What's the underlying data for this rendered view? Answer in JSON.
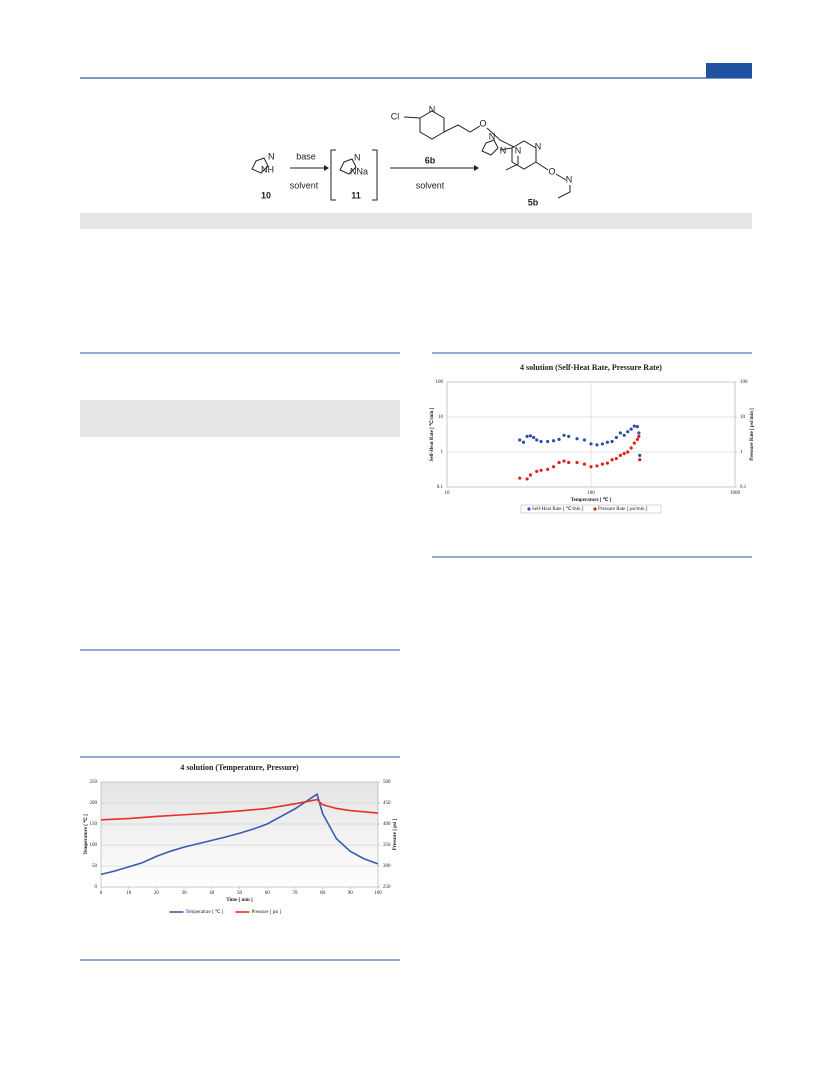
{
  "scheme": {
    "texts": [
      "Cl",
      "N",
      "O",
      "N",
      "6b",
      "N",
      "NH",
      "10",
      "base",
      "solvent",
      "N",
      "NNa",
      "11",
      "solvent",
      "N",
      "N",
      "N",
      "O",
      "N",
      "5b"
    ]
  },
  "chart_data": [
    {
      "type": "scatter",
      "title": "4 solution (Self-Heat Rate, Pressure Rate)",
      "x_label": "Temperature [ ℃ ]",
      "y_label": "Self-Heat Rate [ ℃/min ]",
      "y2_label": "Pressure Rate [ psi/min ]",
      "log_x": true,
      "log_y": true,
      "xlim": [
        10,
        1000
      ],
      "xticks": [
        10,
        100,
        1000
      ],
      "ylim": [
        0.1,
        100
      ],
      "yticks": [
        0.1,
        1,
        10,
        100
      ],
      "y2lim": [
        0.1,
        100
      ],
      "y2ticks": [
        0.1,
        1,
        10,
        100
      ],
      "grid": true,
      "legend": "bottom",
      "series": [
        {
          "name": "Self-Heat Rate [ ℃/min ]",
          "color": "#2f4fa8",
          "x": [
            32,
            34,
            36,
            38,
            40,
            42,
            45,
            50,
            55,
            60,
            65,
            70,
            80,
            90,
            100,
            110,
            120,
            130,
            140,
            150,
            160,
            170,
            180,
            190,
            200,
            210,
            215,
            218
          ],
          "values": [
            2.2,
            1.9,
            2.8,
            2.9,
            2.6,
            2.2,
            2.0,
            2.0,
            2.1,
            2.3,
            3.0,
            2.8,
            2.4,
            2.2,
            1.7,
            1.6,
            1.7,
            1.9,
            2.0,
            2.6,
            3.5,
            3.0,
            3.8,
            4.5,
            5.5,
            5.3,
            3.5,
            0.8
          ]
        },
        {
          "name": "Pressure Rate [ psi/min ]",
          "color": "#e02020",
          "axis": "y2",
          "x": [
            32,
            36,
            38,
            42,
            45,
            50,
            55,
            60,
            65,
            70,
            80,
            90,
            100,
            110,
            120,
            130,
            140,
            150,
            160,
            170,
            180,
            190,
            200,
            210,
            215,
            218
          ],
          "values": [
            0.18,
            0.17,
            0.22,
            0.28,
            0.3,
            0.32,
            0.38,
            0.5,
            0.55,
            0.5,
            0.5,
            0.45,
            0.38,
            0.4,
            0.45,
            0.48,
            0.6,
            0.65,
            0.8,
            0.9,
            1.0,
            1.3,
            1.8,
            2.3,
            2.8,
            0.6
          ]
        }
      ]
    },
    {
      "type": "line",
      "title": "4 solution (Temperature, Pressure)",
      "x_label": "Time [ min ]",
      "y_label": "Temperature [ ℃ ]",
      "y2_label": "Pressure [ psi ]",
      "xlim": [
        0,
        100
      ],
      "xticks": [
        0,
        10,
        20,
        30,
        40,
        50,
        60,
        70,
        80,
        90,
        100
      ],
      "ylim": [
        0,
        250
      ],
      "yticks": [
        0,
        50,
        100,
        150,
        200,
        250
      ],
      "y2lim": [
        250,
        500
      ],
      "y2ticks": [
        250,
        300,
        350,
        400,
        450,
        500
      ],
      "grid": true,
      "legend": "bottom",
      "series": [
        {
          "name": "Temperature [ ℃ ]",
          "color": "#3a5bb0",
          "x": [
            0,
            5,
            10,
            15,
            20,
            25,
            30,
            35,
            40,
            45,
            50,
            55,
            60,
            65,
            70,
            75,
            78,
            80,
            85,
            90,
            95,
            100
          ],
          "values": [
            30,
            38,
            48,
            58,
            73,
            85,
            95,
            103,
            111,
            119,
            128,
            138,
            150,
            168,
            186,
            208,
            221,
            175,
            115,
            85,
            67,
            55
          ]
        },
        {
          "name": "Pressure [ psi ]",
          "color": "#e8302a",
          "axis": "y2",
          "x": [
            0,
            10,
            20,
            30,
            40,
            50,
            60,
            70,
            78,
            80,
            85,
            90,
            95,
            100
          ],
          "values": [
            410,
            413,
            418,
            422,
            426,
            431,
            437,
            448,
            458,
            446,
            437,
            432,
            429,
            426
          ]
        }
      ]
    }
  ]
}
